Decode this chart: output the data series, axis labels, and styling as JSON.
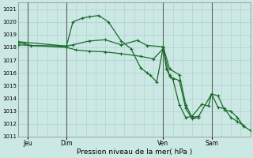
{
  "xlabel": "Pression niveau de la mer( hPa )",
  "bg_color": "#cce8e4",
  "grid_color": "#b0d4d0",
  "line_color": "#1a6b2a",
  "ylim": [
    1011,
    1021.5
  ],
  "ytick_labels": [
    "1011",
    "1012",
    "1013",
    "1014",
    "1015",
    "1016",
    "1017",
    "1018",
    "1019",
    "1020",
    "1021"
  ],
  "ytick_vals": [
    1011,
    1012,
    1013,
    1014,
    1015,
    1016,
    1017,
    1018,
    1019,
    1020,
    1021
  ],
  "xlim": [
    0,
    72
  ],
  "xtick_labels": [
    "Jeu",
    "Dim",
    "Ven",
    "Sam"
  ],
  "xtick_positions": [
    3,
    15,
    45,
    60
  ],
  "vline_positions": [
    3,
    15,
    45,
    60
  ],
  "series": [
    [
      [
        0,
        1018.35
      ],
      [
        2,
        1018.3
      ],
      [
        4,
        1018.15
      ],
      [
        15,
        1018.1
      ],
      [
        17,
        1020.0
      ],
      [
        20,
        1020.3
      ],
      [
        22,
        1020.4
      ],
      [
        25,
        1020.5
      ],
      [
        28,
        1020.0
      ],
      [
        32,
        1018.5
      ],
      [
        35,
        1017.9
      ],
      [
        38,
        1016.4
      ],
      [
        40,
        1016.0
      ],
      [
        41,
        1015.8
      ],
      [
        43,
        1015.3
      ],
      [
        45,
        1018.0
      ],
      [
        46,
        1016.3
      ],
      [
        47,
        1015.8
      ],
      [
        48,
        1015.5
      ],
      [
        50,
        1013.5
      ],
      [
        52,
        1012.5
      ],
      [
        54,
        1012.6
      ],
      [
        57,
        1013.55
      ],
      [
        59,
        1013.4
      ],
      [
        60,
        1014.35
      ],
      [
        62,
        1013.3
      ],
      [
        64,
        1013.2
      ],
      [
        66,
        1012.5
      ],
      [
        68,
        1012.2
      ],
      [
        70,
        1011.85
      ]
    ],
    [
      [
        0,
        1018.45
      ],
      [
        15,
        1018.1
      ],
      [
        17,
        1018.2
      ],
      [
        22,
        1018.5
      ],
      [
        27,
        1018.6
      ],
      [
        32,
        1018.2
      ],
      [
        37,
        1018.55
      ],
      [
        40,
        1018.15
      ],
      [
        45,
        1018.05
      ],
      [
        47,
        1016.3
      ],
      [
        50,
        1015.85
      ],
      [
        52,
        1013.5
      ],
      [
        54,
        1012.5
      ],
      [
        56,
        1012.6
      ],
      [
        60,
        1014.35
      ],
      [
        62,
        1014.2
      ],
      [
        64,
        1013.1
      ],
      [
        66,
        1013.0
      ],
      [
        68,
        1012.5
      ],
      [
        70,
        1011.8
      ],
      [
        72,
        1011.5
      ]
    ],
    [
      [
        0,
        1018.2
      ],
      [
        15,
        1018.0
      ],
      [
        18,
        1017.8
      ],
      [
        22,
        1017.7
      ],
      [
        27,
        1017.65
      ],
      [
        32,
        1017.5
      ],
      [
        38,
        1017.3
      ],
      [
        42,
        1017.1
      ],
      [
        45,
        1017.9
      ],
      [
        47,
        1015.7
      ],
      [
        50,
        1015.4
      ],
      [
        52,
        1013.2
      ],
      [
        54,
        1012.4
      ],
      [
        56,
        1012.5
      ]
    ]
  ],
  "marker": "+",
  "markersize": 3,
  "linewidth": 0.9
}
